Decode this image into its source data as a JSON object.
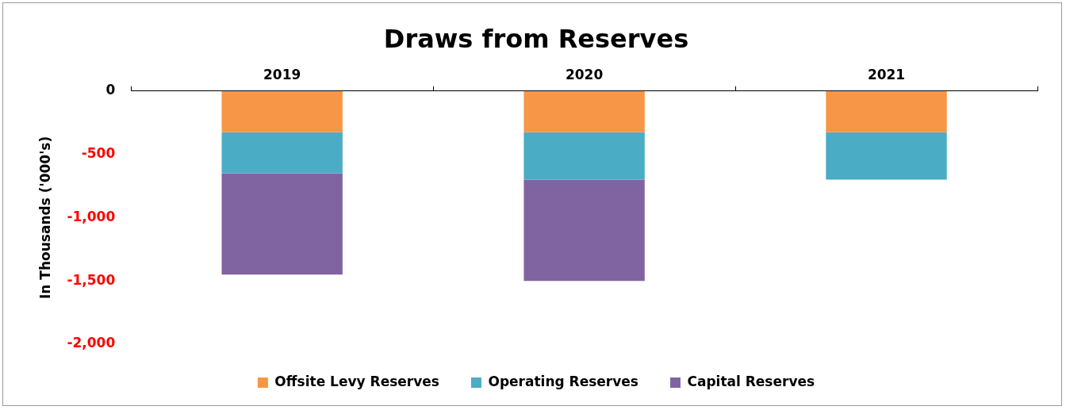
{
  "chart_data": {
    "type": "bar",
    "title": "Draws from Reserves",
    "ylabel": "In Thousands ('000's)",
    "categories": [
      "2019",
      "2020",
      "2021"
    ],
    "stacked": true,
    "legend": "bottom",
    "grid": false,
    "series": [
      {
        "name": "Offsite Levy Reserves",
        "color": "#f79646",
        "values": [
          -325,
          -325,
          -325
        ]
      },
      {
        "name": "Operating Reserves",
        "color": "#4bacc6",
        "values": [
          -325,
          -375,
          -375
        ]
      },
      {
        "name": "Capital Reserves",
        "color": "#8064a2",
        "values": [
          -800,
          -800,
          null
        ]
      }
    ],
    "ylim": [
      -2000,
      0
    ],
    "yticks": [
      {
        "value": -2000,
        "label": "-2,000"
      },
      {
        "value": -1500,
        "label": "-1,500"
      },
      {
        "value": -1000,
        "label": "-1,000"
      },
      -500,
      0
    ]
  }
}
